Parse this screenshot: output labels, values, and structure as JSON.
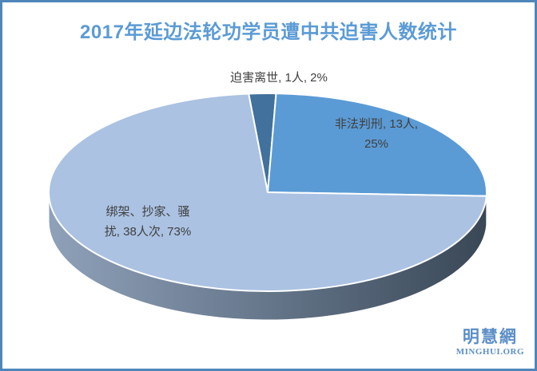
{
  "frame": {
    "border_color": "#4E86B9",
    "background_color": "#FFFFFF"
  },
  "title": {
    "text": "2017年延边法轮功学员遭中共迫害人数统计",
    "color": "#5B9BD5"
  },
  "chart_data": {
    "type": "pie",
    "style": "3d",
    "title": "2017年延边法轮功学员遭中共迫害人数统计",
    "legend_position": "none",
    "data_labels": "category, value, percent",
    "start_angle_deg": -5,
    "slices": [
      {
        "label": "迫害离世",
        "value": 1,
        "value_text": "1人",
        "percent": 2,
        "color": "#41719C"
      },
      {
        "label": "非法判刑",
        "value": 13,
        "value_text": "13人",
        "percent": 25,
        "color": "#5B9BD5"
      },
      {
        "label": "绑架、抄家、骚扰",
        "value": 38,
        "value_text": "38人次",
        "percent": 73,
        "color": "#ABC2E2"
      }
    ],
    "side_gradient": [
      "#8FA1B9",
      "#6A7B90",
      "#394756"
    ],
    "slice_outline_color": "#FFFFFF"
  },
  "pie_labels": {
    "death": "迫害离世, 1人, 2%",
    "sentenced_line1": "非法判刑, 13人,",
    "sentenced_line2": "25%",
    "abduction_line1": "绑架、抄家、骚",
    "abduction_line2": "扰, 38人次, 73%"
  },
  "watermark": {
    "cjk": "明慧網",
    "latin": "MINGHUI.ORG",
    "color": "#5C8FC6"
  }
}
